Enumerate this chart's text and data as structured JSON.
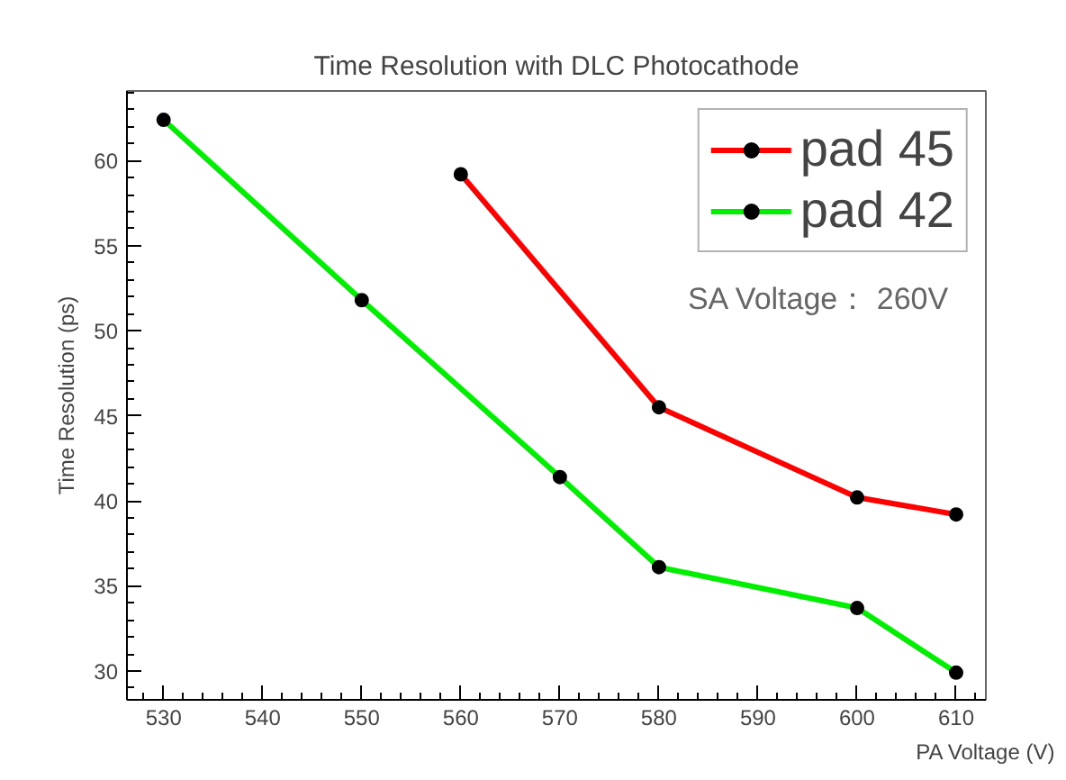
{
  "chart_data": {
    "type": "line",
    "title": "Time Resolution with DLC Photocathode",
    "xlabel": "PA Voltage (V)",
    "ylabel": "Time Resolution (ps)",
    "annotations": [
      "SA Voltage： 260V"
    ],
    "series": [
      {
        "name": "pad 45",
        "color": "#ff0000",
        "x": [
          560,
          580,
          600,
          610
        ],
        "values": [
          59.2,
          45.5,
          40.2,
          39.2
        ]
      },
      {
        "name": "pad 42",
        "color": "#00ee00",
        "x": [
          530,
          550,
          570,
          580,
          600,
          610
        ],
        "values": [
          62.4,
          51.8,
          41.4,
          36.1,
          33.7,
          29.9
        ]
      }
    ],
    "xlim": [
      526.3,
      613
    ],
    "ylim": [
      28.3,
      64.1
    ],
    "xticks": [
      530,
      540,
      550,
      560,
      570,
      580,
      590,
      600,
      610
    ],
    "yticks": [
      30,
      35,
      40,
      45,
      50,
      55,
      60
    ],
    "grid": false,
    "legend": "top right",
    "marker": "circle",
    "line_style": "solid"
  }
}
